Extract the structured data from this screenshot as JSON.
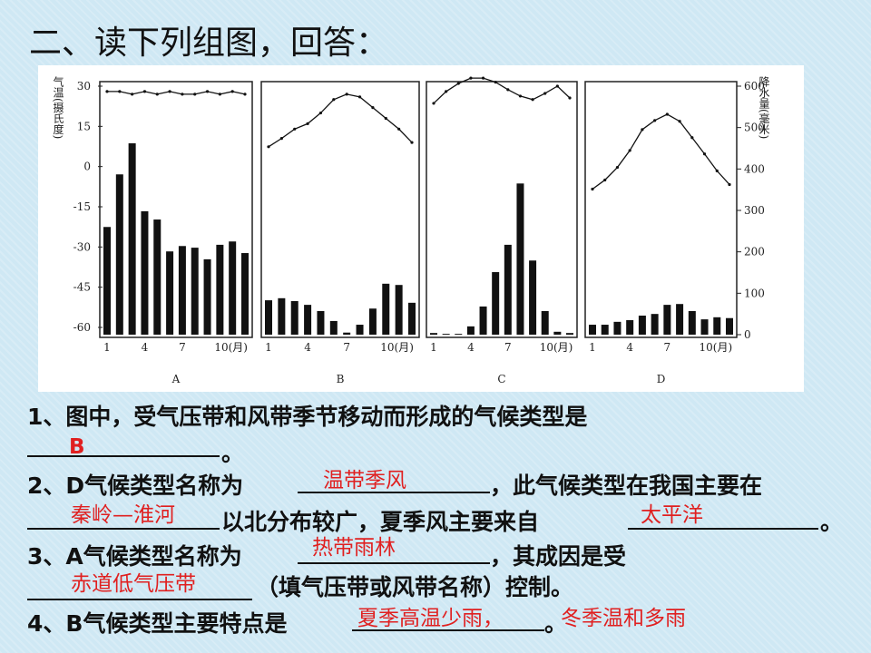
{
  "title": "二、读下列组图，回答：",
  "figure": {
    "temp_axis": {
      "label": "气温(摄氏度)",
      "lim": [
        -60,
        30
      ],
      "ticks": [
        30,
        15,
        0,
        -15,
        -30,
        -45,
        -60
      ]
    },
    "precip_axis": {
      "label": "降水量(毫米)",
      "lim": [
        0,
        600
      ],
      "ticks": [
        600,
        500,
        400,
        300,
        200,
        100,
        0
      ]
    },
    "month_ticks": [
      1,
      4,
      7,
      {
        "value": 10,
        "label": "10(月)"
      }
    ],
    "panels": [
      {
        "label": "A",
        "temperature": [
          28,
          28,
          27,
          28,
          27,
          28,
          27,
          27,
          28,
          27,
          28,
          27
        ],
        "precipitation": [
          260,
          387,
          462,
          298,
          278,
          201,
          214,
          210,
          182,
          217,
          225,
          197
        ]
      },
      {
        "label": "B",
        "temperature": [
          7.4,
          10.5,
          14,
          16,
          20,
          25,
          27,
          26,
          22,
          18,
          14,
          9
        ],
        "precipitation": [
          83,
          88,
          81,
          72,
          57,
          33,
          5,
          24,
          63,
          123,
          120,
          77
        ]
      },
      {
        "label": "C",
        "temperature": [
          23.6,
          28,
          31,
          33,
          33,
          31.5,
          28.7,
          26.3,
          25,
          27.3,
          30,
          25.6
        ],
        "precipitation": [
          4,
          2,
          2,
          20,
          68,
          151,
          217,
          365,
          179,
          57,
          7,
          4
        ]
      },
      {
        "label": "D",
        "temperature": [
          -8.4,
          -5,
          -0.3,
          6,
          13.8,
          17.2,
          19.5,
          16.9,
          10.8,
          4.7,
          -1.6,
          -6.7
        ],
        "precipitation": [
          24,
          24,
          31,
          35,
          46,
          50,
          72,
          74,
          57,
          37,
          42,
          40
        ]
      }
    ]
  },
  "questions": [
    {
      "parts": [
        "1、图中，受气压带和风带季节移动而形成的气候类型是",
        "。"
      ],
      "answers": [
        "B"
      ]
    },
    {
      "parts": [
        "2、D气候类型名称为",
        "，此气候类型在我国主要在",
        "以北分布较广，夏季风主要来自",
        "。"
      ],
      "answers": [
        "温带季风",
        "秦岭—淮河",
        "太平洋"
      ]
    },
    {
      "parts": [
        "3、A气候类型名称为",
        "，其成因是受",
        "（填气压带或风带名称）控制。"
      ],
      "answers": [
        "热带雨林",
        "赤道低气压带"
      ]
    },
    {
      "parts": [
        "4、B气候类型主要特点是",
        "。"
      ],
      "answers": [
        "夏季高温少雨，",
        "冬季温和多雨"
      ]
    }
  ]
}
